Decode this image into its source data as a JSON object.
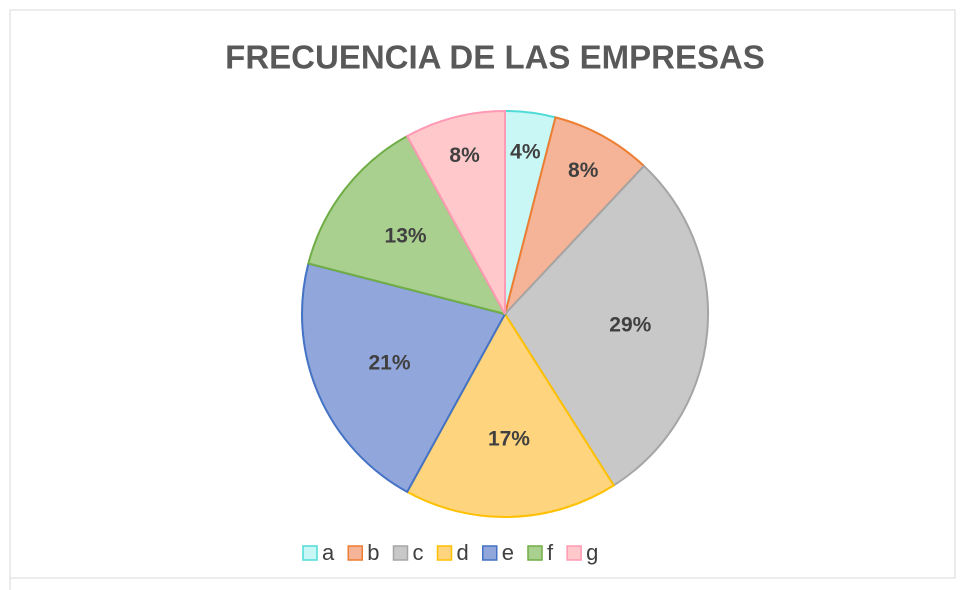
{
  "chart_data": {
    "type": "pie",
    "title": "FRECUENCIA DE LAS EMPRESAS",
    "categories": [
      "a",
      "b",
      "c",
      "d",
      "e",
      "f",
      "g"
    ],
    "values": [
      4,
      8,
      29,
      17,
      21,
      13,
      8
    ],
    "value_labels": [
      "4%",
      "8%",
      "29%",
      "17%",
      "21%",
      "13%",
      "8%"
    ],
    "colors": [
      "#c9f7f5",
      "#f5b497",
      "#c8c8c8",
      "#ffd47e",
      "#91a6da",
      "#a9d08e",
      "#ffc9cc"
    ],
    "edge_colors": [
      "#4fdcd8",
      "#ed7d31",
      "#a5a5a5",
      "#ffc000",
      "#4472c4",
      "#70ad47",
      "#ff99b4"
    ],
    "legend": "bottom"
  }
}
